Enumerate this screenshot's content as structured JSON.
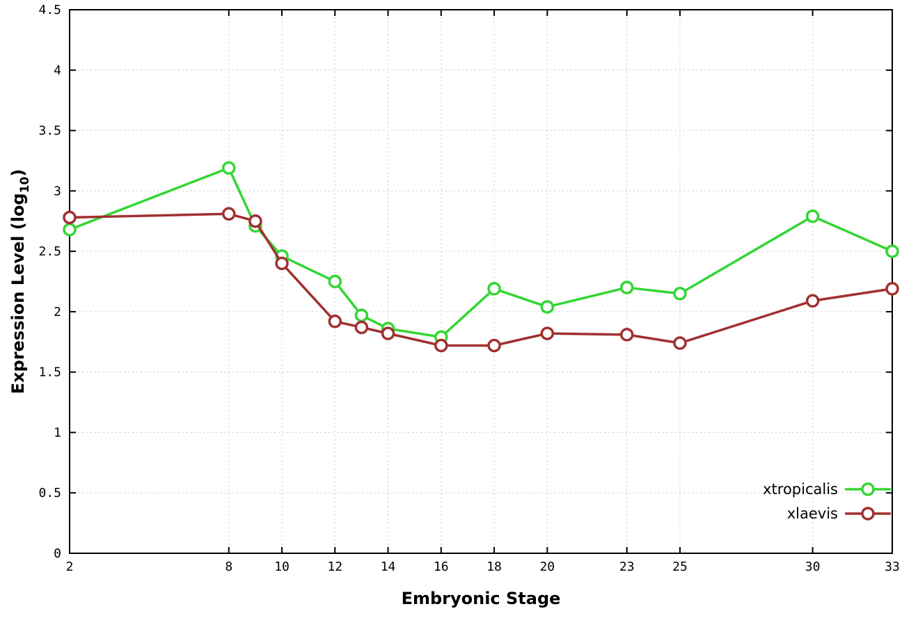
{
  "chart_data": {
    "type": "line",
    "title": "",
    "xlabel": "Embryonic Stage",
    "ylabel": "Expression Level (log10)",
    "ylabel_parts": {
      "prefix": "Expression Level (log",
      "sub": "10",
      "suffix": ")"
    },
    "xlim": [
      2,
      33
    ],
    "ylim": [
      0,
      4.5
    ],
    "xticks": [
      2,
      8,
      10,
      12,
      14,
      16,
      18,
      20,
      23,
      25,
      30,
      33
    ],
    "xtick_labels": [
      "2",
      "8",
      "10",
      "12",
      "14",
      "16",
      "18",
      "20",
      "23",
      "25",
      "30",
      "33"
    ],
    "yticks": [
      0,
      0.5,
      1,
      1.5,
      2,
      2.5,
      3,
      3.5,
      4,
      4.5
    ],
    "ytick_labels": [
      "0",
      "0.5",
      "1",
      "1.5",
      "2",
      "2.5",
      "3",
      "3.5",
      "4",
      "4.5"
    ],
    "grid": true,
    "legend_position": "bottom-right",
    "x": [
      2,
      8,
      9,
      10,
      12,
      13,
      14,
      16,
      18,
      20,
      23,
      25,
      30,
      33
    ],
    "series": [
      {
        "name": "xtropicalis",
        "color": "#33d633",
        "marker": "open-circle",
        "values": [
          2.68,
          3.19,
          2.71,
          2.46,
          2.25,
          1.97,
          1.86,
          1.79,
          2.19,
          2.04,
          2.2,
          2.15,
          2.79,
          2.5
        ]
      },
      {
        "name": "xlaevis",
        "color": "#a0302f",
        "marker": "open-circle",
        "values": [
          2.78,
          2.81,
          2.75,
          2.4,
          1.92,
          1.87,
          1.82,
          1.72,
          1.72,
          1.82,
          1.81,
          1.74,
          2.09,
          2.19
        ]
      }
    ],
    "colors": {
      "background": "#ffffff",
      "grid": "#c9c9c9",
      "axis": "#000000"
    }
  }
}
